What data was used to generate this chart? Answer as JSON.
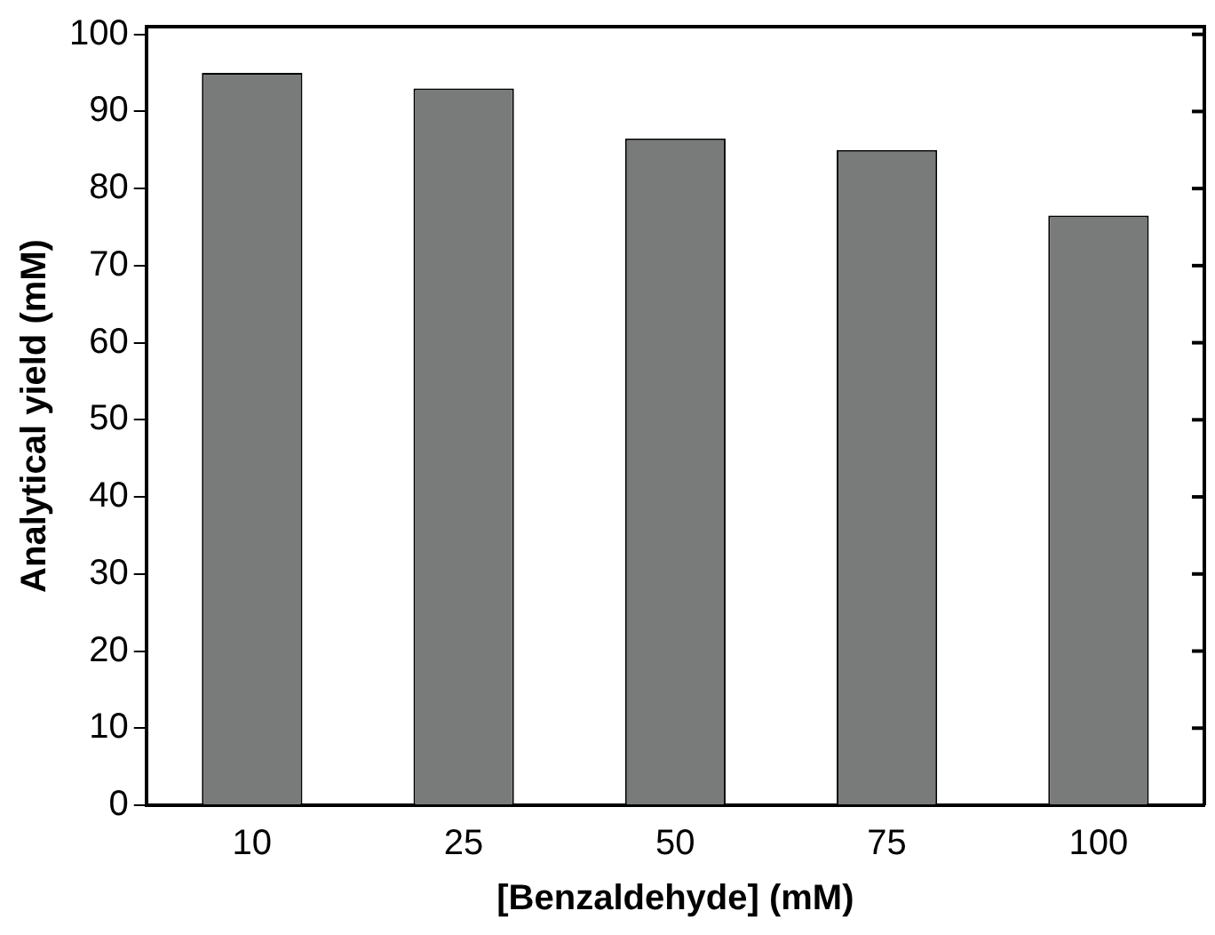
{
  "chart_data": {
    "type": "bar",
    "xlabel": "[Benzaldehyde] (mM)",
    "ylabel": "Analytical yield (mM)",
    "categories": [
      "10",
      "25",
      "50",
      "75",
      "100"
    ],
    "series": [
      {
        "color": "#797b7b",
        "values": [
          95,
          93,
          86.5,
          85,
          76.5
        ]
      }
    ],
    "ylim": [
      0,
      101
    ],
    "yticks": [
      0,
      10,
      20,
      30,
      40,
      50,
      60,
      70,
      80,
      90,
      100
    ],
    "grid": false,
    "legend": false
  }
}
